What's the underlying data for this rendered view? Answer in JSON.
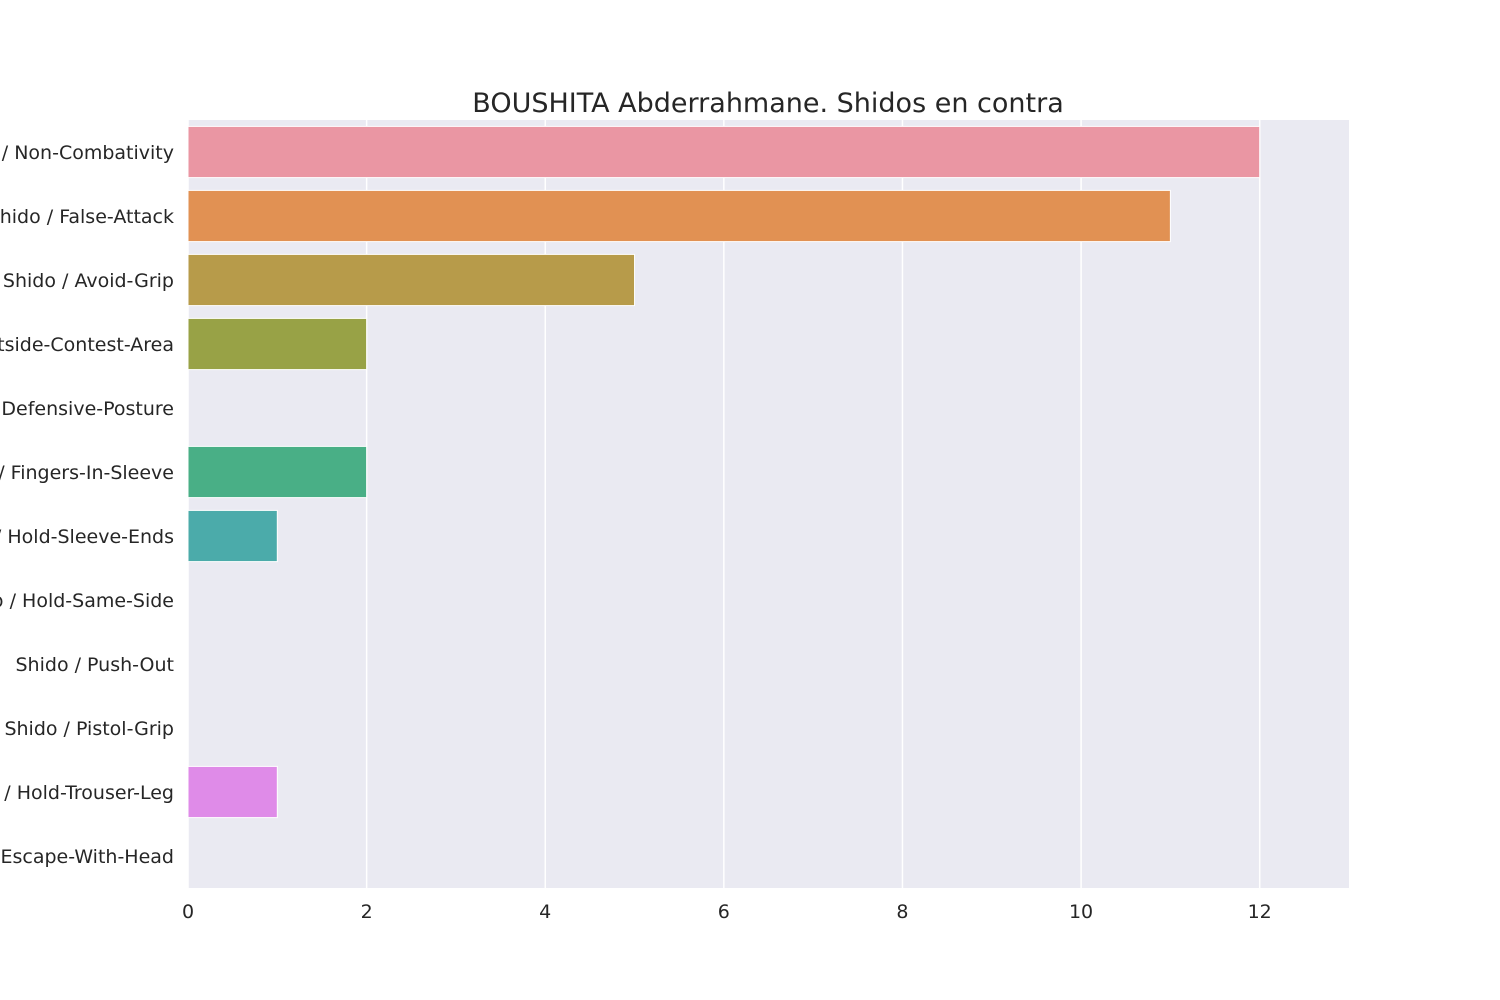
{
  "chart_data": {
    "type": "bar",
    "orientation": "horizontal",
    "title": "BOUSHITA Abderrahmane. Shidos en contra",
    "xlabel": "",
    "ylabel": "",
    "xlim": [
      0,
      13
    ],
    "x_ticks": [
      0,
      2,
      4,
      6,
      8,
      10,
      12
    ],
    "grid": true,
    "categories": [
      "Shido / Non-Combativity",
      "Shido / False-Attack",
      "Shido / Avoid-Grip",
      "Shido / Outside-Contest-Area",
      "Shido / Defensive-Posture",
      "Shido / Fingers-In-Sleeve",
      "Shido / Hold-Sleeve-Ends",
      "Shido / Hold-Same-Side",
      "Shido / Push-Out",
      "Shido / Pistol-Grip",
      "Shido / Hold-Trouser-Leg",
      "Shido / Escape-With-Head"
    ],
    "values": [
      12,
      11,
      5,
      2,
      0,
      2,
      1,
      0,
      0,
      0,
      1,
      0
    ],
    "colors": [
      "#ea96a3",
      "#e19153",
      "#b79b4a",
      "#98a246",
      "#6aab47",
      "#49af86",
      "#4babaa",
      "#4fa8c8",
      "#7fa1e6",
      "#ba90ec",
      "#df8be8",
      "#e690c2"
    ],
    "plot_background": "#eaeaf2",
    "grid_color": "#ffffff"
  }
}
